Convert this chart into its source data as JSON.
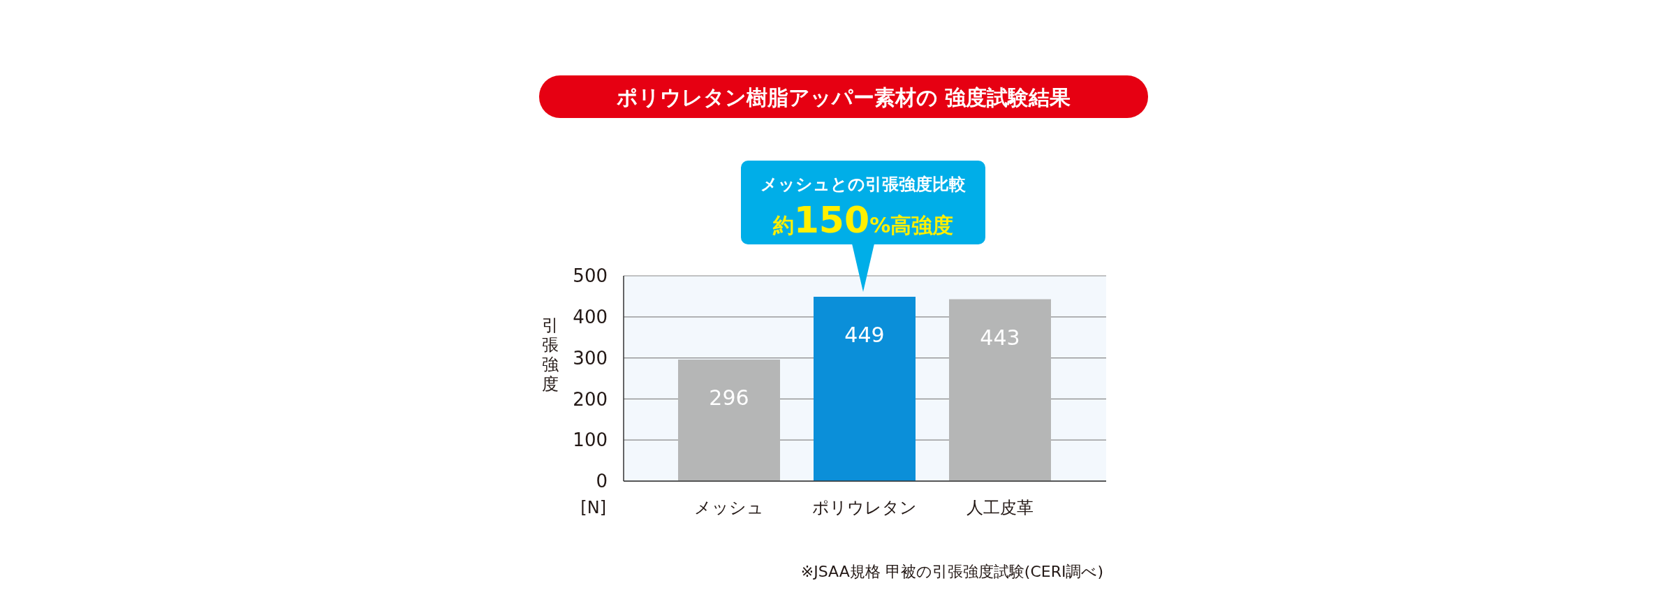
{
  "chart_data": {
    "type": "bar",
    "title": "ポリウレタン樹脂アッパー素材の 強度試験結果",
    "ylabel": "引張強度",
    "categories": [
      "メッシュ",
      "ポリウレタン",
      "人工皮革"
    ],
    "values": [
      296,
      449,
      443
    ],
    "colors": [
      "#b5b6b6",
      "#0b8fd9",
      "#b5b6b6"
    ],
    "data_labels": true,
    "ylim": [
      0,
      500
    ],
    "yticks": [
      0,
      100,
      200,
      300,
      400,
      500
    ],
    "grid": "y",
    "annotations": [
      "[N]",
      "メッシュとの引張強度比較",
      "約150%高強度",
      "※JSAA規格 甲被の引張強度試験(CERI調べ)"
    ]
  }
}
